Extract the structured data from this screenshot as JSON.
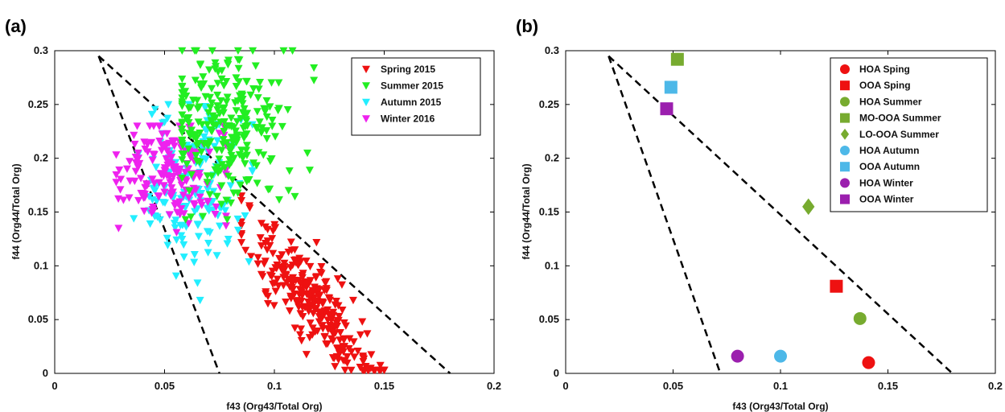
{
  "chart_data": [
    {
      "panel": "(a)",
      "type": "scatter",
      "xlabel": "f43 (Org43/Total Org)",
      "ylabel": "f44 (Org44/Total Org)",
      "xlim": [
        0,
        0.2
      ],
      "ylim": [
        0,
        0.3
      ],
      "xticks": [
        "0",
        "0.05",
        "0.1",
        "0.15",
        "0.2"
      ],
      "yticks": [
        "0",
        "0.05",
        "0.1",
        "0.15",
        "0.2",
        "0.25",
        "0.3"
      ],
      "grid": false,
      "legend_position": "top-right",
      "marker": "triangle-down",
      "reference_lines": [
        {
          "style": "dashed",
          "points": [
            [
              0.02,
              0.295
            ],
            [
              0.075,
              0.0
            ]
          ]
        },
        {
          "style": "dashed",
          "points": [
            [
              0.02,
              0.295
            ],
            [
              0.18,
              0.0
            ]
          ]
        }
      ],
      "series": [
        {
          "name": "Spring 2015",
          "color": "#ee1111",
          "cluster": {
            "n": 280,
            "x": [
              0.085,
              0.15
            ],
            "y": [
              0.0,
              0.165
            ],
            "center": [
              0.118,
              0.065
            ],
            "trend": "descending"
          }
        },
        {
          "name": "Summer 2015",
          "color": "#22ee22",
          "cluster": {
            "n": 260,
            "x": [
              0.058,
              0.118
            ],
            "y": [
              0.14,
              0.3
            ],
            "center": [
              0.078,
              0.23
            ]
          }
        },
        {
          "name": "Autumn 2015",
          "color": "#22eeff",
          "cluster": {
            "n": 160,
            "x": [
              0.036,
              0.09
            ],
            "y": [
              0.065,
              0.25
            ],
            "center": [
              0.062,
              0.17
            ]
          }
        },
        {
          "name": "Winter 2016",
          "color": "#ee22ee",
          "cluster": {
            "n": 170,
            "x": [
              0.028,
              0.078
            ],
            "y": [
              0.12,
              0.23
            ],
            "center": [
              0.053,
              0.185
            ]
          }
        }
      ]
    },
    {
      "panel": "(b)",
      "type": "scatter",
      "xlabel": "f43 (Org43/Total Org)",
      "ylabel": "f44 (Org44/Total Org)",
      "xlim": [
        0,
        0.2
      ],
      "ylim": [
        0,
        0.3
      ],
      "xticks": [
        "0",
        "0.05",
        "0.1",
        "0.15",
        "0.2"
      ],
      "yticks": [
        "0",
        "0.05",
        "0.1",
        "0.15",
        "0.2",
        "0.25",
        "0.3"
      ],
      "grid": false,
      "legend_position": "top-right",
      "reference_lines": [
        {
          "style": "dashed",
          "points": [
            [
              0.02,
              0.295
            ],
            [
              0.072,
              0.0
            ]
          ]
        },
        {
          "style": "dashed",
          "points": [
            [
              0.02,
              0.295
            ],
            [
              0.18,
              0.0
            ]
          ]
        }
      ],
      "series": [
        {
          "name": "HOA Sping",
          "color": "#ee1111",
          "marker": "circle",
          "x": 0.141,
          "y": 0.01
        },
        {
          "name": "OOA Sping",
          "color": "#ee1111",
          "marker": "square",
          "x": 0.126,
          "y": 0.081
        },
        {
          "name": "HOA Summer",
          "color": "#77ab2f",
          "marker": "circle",
          "x": 0.137,
          "y": 0.051
        },
        {
          "name": "MO-OOA Summer",
          "color": "#77ab2f",
          "marker": "square",
          "x": 0.052,
          "y": 0.292
        },
        {
          "name": "LO-OOA Summer",
          "color": "#77ab2f",
          "marker": "diamond",
          "x": 0.113,
          "y": 0.155
        },
        {
          "name": "HOA Autumn",
          "color": "#4db8e8",
          "marker": "circle",
          "x": 0.1,
          "y": 0.016
        },
        {
          "name": "OOA Autumn",
          "color": "#4db8e8",
          "marker": "square",
          "x": 0.049,
          "y": 0.266
        },
        {
          "name": "HOA Winter",
          "color": "#9b1fae",
          "marker": "circle",
          "x": 0.08,
          "y": 0.016
        },
        {
          "name": "OOA Winter",
          "color": "#9b1fae",
          "marker": "square",
          "x": 0.047,
          "y": 0.246
        }
      ]
    }
  ]
}
